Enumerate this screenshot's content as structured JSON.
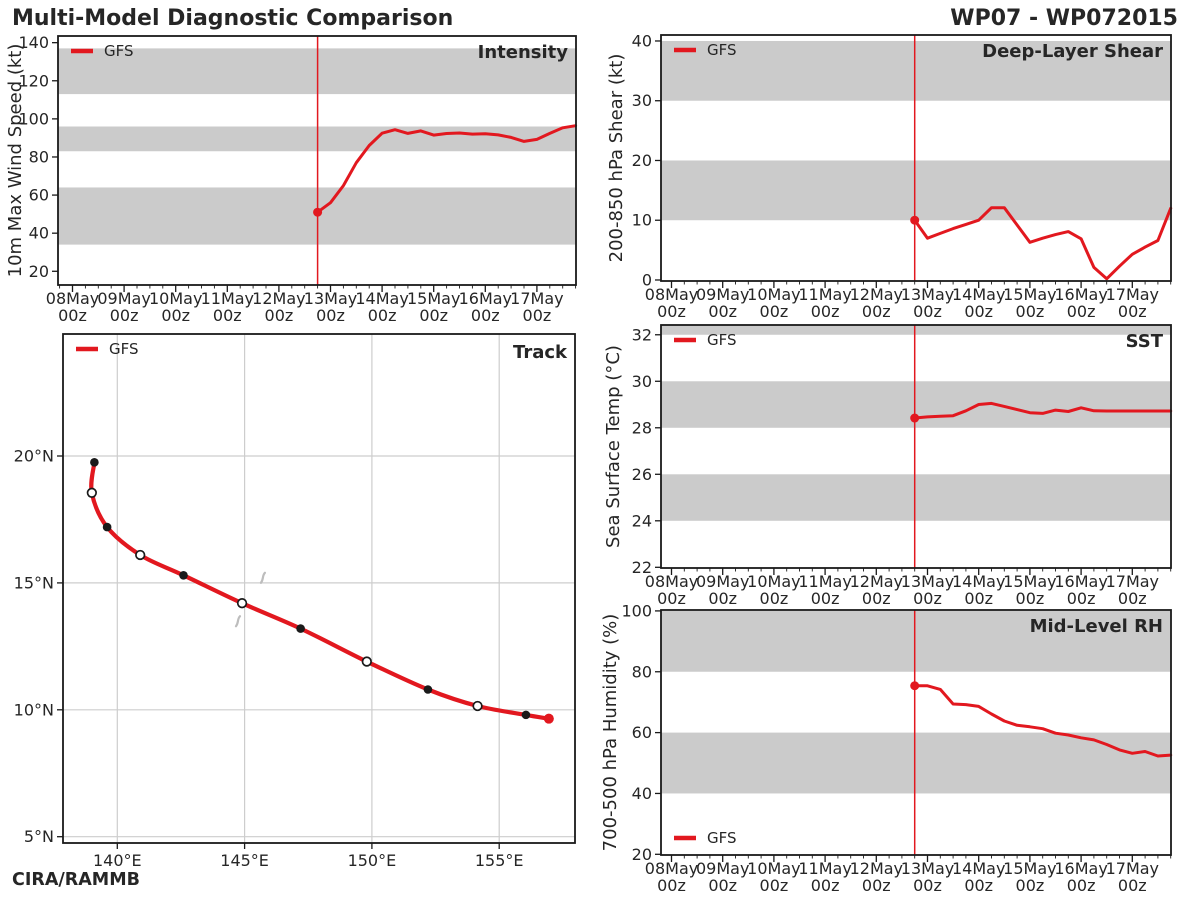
{
  "header": {
    "title": "Multi-Model Diagnostic Comparison",
    "storm_id": "WP07 - WP072015"
  },
  "footer": {
    "credit": "CIRA/RAMMB"
  },
  "legend": {
    "label": "GFS"
  },
  "colors": {
    "series_red": "#e2181f",
    "band_gray": "#cbcbcb",
    "grid_gray": "#cdcdcd",
    "spine": "#1a1a1a",
    "text": "#262626",
    "island_gray": "#bdbdbd",
    "open_marker_fill": "#ffffff"
  },
  "time_axis": {
    "day_labels": [
      "08May",
      "09May",
      "10May",
      "11May",
      "12May",
      "13May",
      "14May",
      "15May",
      "16May",
      "17May"
    ],
    "hour_label": "00z",
    "init_time_days": 4.75,
    "minor_step_days": 0.25
  },
  "chart_data": [
    {
      "id": "intensity",
      "type": "line",
      "title": "Intensity",
      "ylabel": "10m Max Wind Speed (kt)",
      "yticks": [
        20,
        40,
        60,
        80,
        100,
        120,
        140
      ],
      "shaded_bands": [
        [
          34,
          64
        ],
        [
          83,
          96
        ],
        [
          113,
          137
        ]
      ],
      "legend_pos": "tl",
      "series": [
        {
          "name": "GFS",
          "points": [
            [
              4.75,
              51
            ],
            [
              5,
              56
            ],
            [
              5.25,
              65
            ],
            [
              5.5,
              77
            ],
            [
              5.75,
              86
            ],
            [
              6,
              92.5
            ],
            [
              6.25,
              94.3
            ],
            [
              6.5,
              92.4
            ],
            [
              6.75,
              93.7
            ],
            [
              7,
              91.5
            ],
            [
              7.25,
              92.3
            ],
            [
              7.5,
              92.6
            ],
            [
              7.75,
              92
            ],
            [
              8,
              92.2
            ],
            [
              8.25,
              91.6
            ],
            [
              8.5,
              90.3
            ],
            [
              8.75,
              88.2
            ],
            [
              9,
              89.2
            ],
            [
              9.25,
              92.4
            ],
            [
              9.5,
              95.3
            ],
            [
              9.75,
              96.4
            ]
          ]
        }
      ]
    },
    {
      "id": "shear",
      "type": "line",
      "title": "Deep-Layer Shear",
      "ylabel": "200-850 hPa Shear (kt)",
      "yticks": [
        0,
        10,
        20,
        30,
        40
      ],
      "shaded_bands": [
        [
          10,
          20
        ],
        [
          30,
          40
        ]
      ],
      "legend_pos": "tl",
      "series": [
        {
          "name": "GFS",
          "points": [
            [
              4.75,
              10
            ],
            [
              5,
              7
            ],
            [
              5.25,
              7.8
            ],
            [
              5.5,
              8.6
            ],
            [
              5.75,
              9.3
            ],
            [
              6,
              10
            ],
            [
              6.25,
              12.1
            ],
            [
              6.5,
              12.1
            ],
            [
              6.75,
              9.2
            ],
            [
              7,
              6.3
            ],
            [
              7.25,
              7
            ],
            [
              7.5,
              7.6
            ],
            [
              7.75,
              8.1
            ],
            [
              8,
              6.9
            ],
            [
              8.25,
              2.1
            ],
            [
              8.5,
              0.2
            ],
            [
              8.75,
              2.3
            ],
            [
              9,
              4.3
            ],
            [
              9.25,
              5.5
            ],
            [
              9.5,
              6.6
            ],
            [
              9.75,
              12
            ]
          ]
        }
      ]
    },
    {
      "id": "track",
      "type": "line",
      "title": "Track",
      "xticks": [
        {
          "v": 140,
          "label": "140°E"
        },
        {
          "v": 145,
          "label": "145°E"
        },
        {
          "v": 150,
          "label": "150°E"
        },
        {
          "v": 155,
          "label": "155°E"
        }
      ],
      "yticks": [
        {
          "v": 5,
          "label": "5°N"
        },
        {
          "v": 10,
          "label": "10°N"
        },
        {
          "v": 15,
          "label": "15°N"
        },
        {
          "v": 20,
          "label": "20°N"
        }
      ],
      "legend_pos": "tl",
      "points": [
        {
          "lon": 156.95,
          "lat": 9.65,
          "marker": "origin"
        },
        {
          "lon": 156.05,
          "lat": 9.8,
          "marker": "filled"
        },
        {
          "lon": 154.15,
          "lat": 10.15,
          "marker": "open"
        },
        {
          "lon": 152.2,
          "lat": 10.8,
          "marker": "filled"
        },
        {
          "lon": 149.8,
          "lat": 11.9,
          "marker": "open"
        },
        {
          "lon": 147.2,
          "lat": 13.2,
          "marker": "filled"
        },
        {
          "lon": 144.9,
          "lat": 14.2,
          "marker": "open"
        },
        {
          "lon": 142.6,
          "lat": 15.3,
          "marker": "filled"
        },
        {
          "lon": 140.9,
          "lat": 16.1,
          "marker": "open"
        },
        {
          "lon": 139.6,
          "lat": 17.2,
          "marker": "filled"
        },
        {
          "lon": 139.0,
          "lat": 18.55,
          "marker": "open"
        },
        {
          "lon": 139.1,
          "lat": 19.75,
          "marker": "filled"
        }
      ],
      "islands": [
        {
          "lon": 145.72,
          "lat": 15.2
        },
        {
          "lon": 144.74,
          "lat": 13.49
        }
      ]
    },
    {
      "id": "sst",
      "type": "line",
      "title": "SST",
      "ylabel": "Sea Surface Temp (°C)",
      "yticks": [
        22,
        24,
        26,
        28,
        30,
        32
      ],
      "shaded_bands": [
        [
          24,
          26
        ],
        [
          28,
          30
        ],
        [
          32,
          34
        ]
      ],
      "legend_pos": "tl",
      "series": [
        {
          "name": "GFS",
          "points": [
            [
              4.75,
              28.42
            ],
            [
              5,
              28.47
            ],
            [
              5.25,
              28.5
            ],
            [
              5.5,
              28.52
            ],
            [
              5.75,
              28.73
            ],
            [
              6,
              29
            ],
            [
              6.25,
              29.05
            ],
            [
              6.5,
              28.92
            ],
            [
              6.75,
              28.78
            ],
            [
              7,
              28.65
            ],
            [
              7.25,
              28.62
            ],
            [
              7.5,
              28.76
            ],
            [
              7.75,
              28.7
            ],
            [
              8,
              28.86
            ],
            [
              8.25,
              28.73
            ],
            [
              8.5,
              28.72
            ],
            [
              8.75,
              28.72
            ],
            [
              9,
              28.72
            ],
            [
              9.25,
              28.72
            ],
            [
              9.5,
              28.72
            ],
            [
              9.75,
              28.72
            ]
          ]
        }
      ]
    },
    {
      "id": "rh",
      "type": "line",
      "title": "Mid-Level RH",
      "ylabel": "700-500 hPa Humidity (%)",
      "yticks": [
        20,
        40,
        60,
        80,
        100
      ],
      "shaded_bands": [
        [
          40,
          60
        ],
        [
          80,
          100
        ]
      ],
      "legend_pos": "bl",
      "series": [
        {
          "name": "GFS",
          "points": [
            [
              4.75,
              75.4
            ],
            [
              5,
              75.4
            ],
            [
              5.25,
              74.2
            ],
            [
              5.5,
              69.4
            ],
            [
              5.75,
              69.2
            ],
            [
              6,
              68.6
            ],
            [
              6.25,
              66.1
            ],
            [
              6.5,
              63.8
            ],
            [
              6.75,
              62.4
            ],
            [
              7,
              61.9
            ],
            [
              7.25,
              61.3
            ],
            [
              7.5,
              59.8
            ],
            [
              7.75,
              59.2
            ],
            [
              8,
              58.3
            ],
            [
              8.25,
              57.6
            ],
            [
              8.5,
              56.1
            ],
            [
              8.75,
              54.3
            ],
            [
              9,
              53.2
            ],
            [
              9.25,
              53.8
            ],
            [
              9.5,
              52.3
            ],
            [
              9.75,
              52.6
            ]
          ]
        }
      ]
    }
  ]
}
